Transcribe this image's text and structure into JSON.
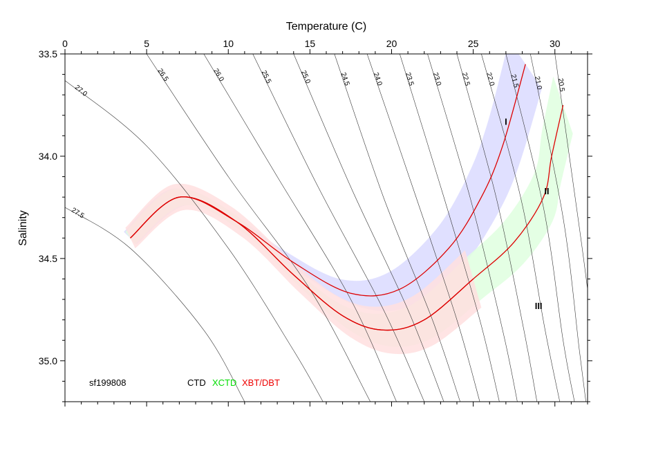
{
  "chart_data": {
    "type": "line",
    "xlabel": "Temperature (C)",
    "ylabel": "Salinity",
    "xlim": [
      0,
      32
    ],
    "ylim": [
      35.2,
      33.5
    ],
    "y_axis_inverted": true,
    "x_ticks": [
      0,
      5,
      10,
      15,
      20,
      25,
      30
    ],
    "y_ticks": [
      33.5,
      34.0,
      34.5,
      35.0
    ],
    "y_tick_labels": [
      "33.5",
      "34.0",
      "34.5",
      "35.0"
    ],
    "isopycnal_labels": [
      "27.5",
      "27.0",
      "26.5",
      "26.0",
      "25.5",
      "25.0",
      "24.5",
      "24.0",
      "23.5",
      "23.0",
      "22.5",
      "22.0",
      "21.5",
      "21.0",
      "20.5"
    ],
    "isopycnals": [
      {
        "label": "27.5",
        "points": [
          [
            0.0,
            34.25
          ],
          [
            4.0,
            34.45
          ],
          [
            8.5,
            34.85
          ],
          [
            11.0,
            35.2
          ]
        ]
      },
      {
        "label": "27.0",
        "points": [
          [
            0.0,
            33.63
          ],
          [
            5.0,
            33.95
          ],
          [
            10.0,
            34.45
          ],
          [
            14.0,
            34.95
          ],
          [
            15.8,
            35.2
          ]
        ]
      },
      {
        "label": "26.5",
        "points": [
          [
            5.0,
            33.5
          ],
          [
            10.0,
            34.1
          ],
          [
            15.0,
            34.65
          ],
          [
            18.7,
            35.2
          ]
        ]
      },
      {
        "label": "26.0",
        "points": [
          [
            8.5,
            33.5
          ],
          [
            13.0,
            34.1
          ],
          [
            17.5,
            34.7
          ],
          [
            20.3,
            35.2
          ]
        ]
      },
      {
        "label": "25.5",
        "points": [
          [
            11.5,
            33.5
          ],
          [
            15.5,
            34.15
          ],
          [
            19.5,
            34.75
          ],
          [
            22.0,
            35.2
          ]
        ]
      },
      {
        "label": "25.0",
        "points": [
          [
            14.0,
            33.5
          ],
          [
            17.5,
            34.15
          ],
          [
            21.0,
            34.75
          ],
          [
            23.2,
            35.2
          ]
        ]
      },
      {
        "label": "24.5",
        "points": [
          [
            16.5,
            33.5
          ],
          [
            19.5,
            34.2
          ],
          [
            22.5,
            34.8
          ],
          [
            24.2,
            35.2
          ]
        ]
      },
      {
        "label": "24.0",
        "points": [
          [
            18.5,
            33.5
          ],
          [
            21.5,
            34.2
          ],
          [
            24.0,
            34.8
          ],
          [
            25.4,
            35.2
          ]
        ]
      },
      {
        "label": "23.5",
        "points": [
          [
            20.5,
            33.5
          ],
          [
            23.2,
            34.2
          ],
          [
            25.4,
            34.8
          ],
          [
            26.6,
            35.2
          ]
        ]
      },
      {
        "label": "23.0",
        "points": [
          [
            22.2,
            33.5
          ],
          [
            24.8,
            34.2
          ],
          [
            26.8,
            34.85
          ],
          [
            27.7,
            35.2
          ]
        ]
      },
      {
        "label": "22.5",
        "points": [
          [
            24.0,
            33.5
          ],
          [
            26.4,
            34.2
          ],
          [
            28.1,
            34.85
          ],
          [
            28.9,
            35.2
          ]
        ]
      },
      {
        "label": "22.0",
        "points": [
          [
            25.5,
            33.5
          ],
          [
            27.9,
            34.2
          ],
          [
            29.4,
            34.85
          ],
          [
            30.3,
            35.2
          ]
        ]
      },
      {
        "label": "21.5",
        "points": [
          [
            27.0,
            33.5
          ],
          [
            29.3,
            34.25
          ],
          [
            30.5,
            34.9
          ],
          [
            31.2,
            35.2
          ]
        ]
      },
      {
        "label": "21.0",
        "points": [
          [
            28.5,
            33.5
          ],
          [
            30.5,
            34.3
          ],
          [
            31.5,
            34.95
          ],
          [
            31.9,
            35.2
          ]
        ]
      },
      {
        "label": "20.5",
        "points": [
          [
            30.0,
            33.5
          ],
          [
            31.5,
            34.35
          ],
          [
            32.0,
            34.65
          ]
        ]
      }
    ],
    "series": [
      {
        "name": "I",
        "points": [
          [
            4.0,
            34.4
          ],
          [
            7.0,
            34.2
          ],
          [
            10.5,
            34.32
          ],
          [
            14.0,
            34.52
          ],
          [
            17.5,
            34.67
          ],
          [
            20.5,
            34.65
          ],
          [
            23.5,
            34.45
          ],
          [
            25.5,
            34.2
          ],
          [
            26.8,
            33.95
          ],
          [
            28.2,
            33.55
          ]
        ]
      },
      {
        "name": "II",
        "points": [
          [
            4.0,
            34.4
          ],
          [
            7.0,
            34.2
          ],
          [
            10.5,
            34.32
          ],
          [
            14.0,
            34.58
          ],
          [
            17.0,
            34.78
          ],
          [
            19.5,
            34.85
          ],
          [
            22.0,
            34.8
          ],
          [
            25.0,
            34.6
          ],
          [
            27.5,
            34.42
          ],
          [
            29.3,
            34.2
          ],
          [
            29.8,
            34.0
          ],
          [
            30.5,
            33.75
          ]
        ]
      },
      {
        "name": "III",
        "points": [
          [
            4.0,
            34.4
          ],
          [
            7.0,
            34.2
          ],
          [
            10.5,
            34.32
          ],
          [
            14.0,
            34.58
          ],
          [
            17.0,
            34.78
          ],
          [
            19.5,
            34.85
          ],
          [
            22.0,
            34.8
          ],
          [
            25.0,
            34.6
          ]
        ]
      }
    ],
    "bands": [
      {
        "series": "I",
        "color": "#dadaff"
      },
      {
        "series": "II",
        "color": "#dfffdf"
      },
      {
        "series": "III",
        "color": "#ffdfdf"
      }
    ],
    "roman_labels": [
      "I",
      "II",
      "III"
    ],
    "annotation": "sf199808",
    "legend": [
      {
        "label": "CTD",
        "color": "#000000"
      },
      {
        "label": "XCTD",
        "color": "#00dd00"
      },
      {
        "label": "XBT/DBT",
        "color": "#ee0000"
      }
    ],
    "line_color": "#dd0000"
  }
}
